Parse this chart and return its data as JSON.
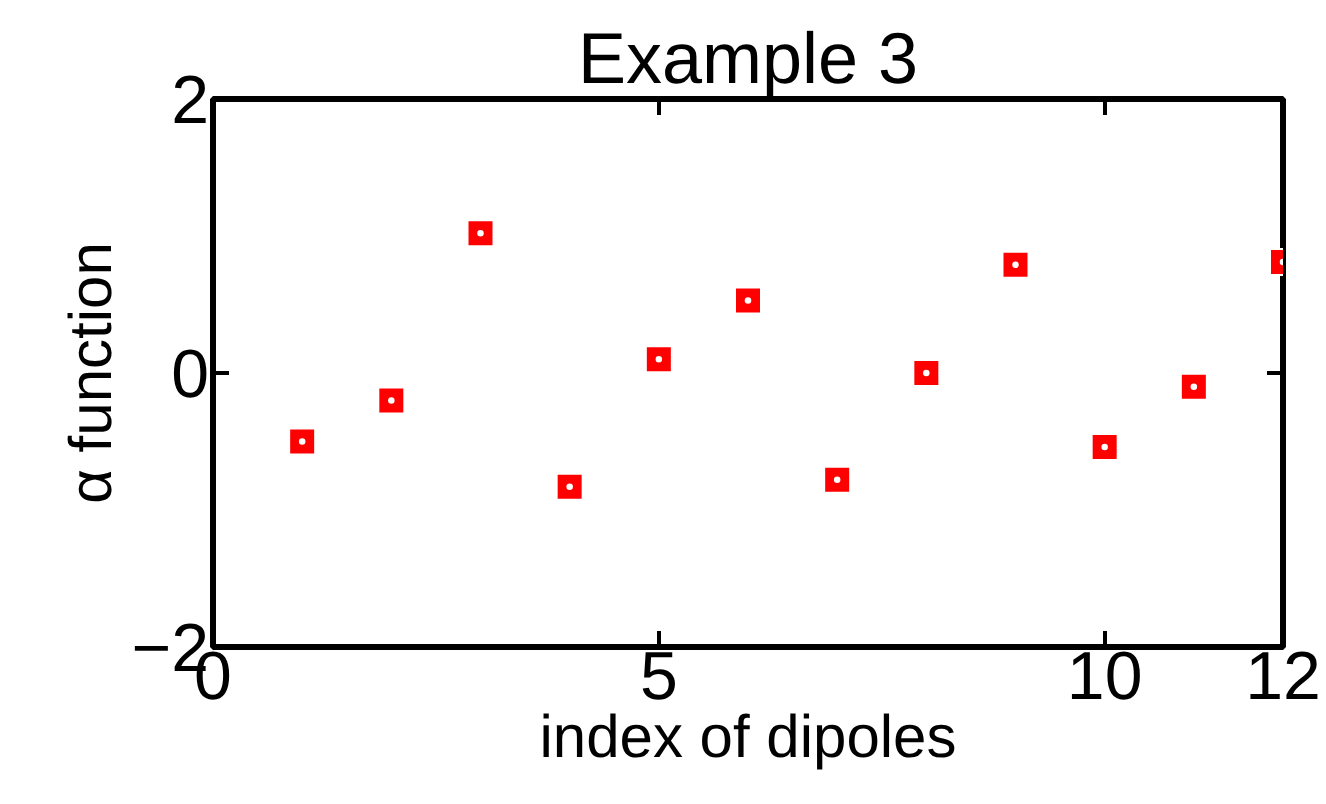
{
  "chart_data": {
    "type": "scatter",
    "title": "Example 3",
    "xlabel": "index of dipoles",
    "ylabel": "α function",
    "x": [
      1,
      2,
      3,
      4,
      5,
      6,
      7,
      8,
      9,
      10,
      11,
      12
    ],
    "values": [
      -0.5,
      -0.2,
      1.02,
      -0.83,
      0.1,
      0.53,
      -0.78,
      0.0,
      0.79,
      -0.54,
      -0.1,
      0.81
    ],
    "color": "#ff0000",
    "marker": "square",
    "xlim": [
      0,
      12
    ],
    "ylim": [
      -2,
      2
    ],
    "xticks": [
      0,
      5,
      10,
      12
    ],
    "yticks": [
      {
        "value": -2,
        "label": "−2"
      },
      0,
      2
    ]
  }
}
